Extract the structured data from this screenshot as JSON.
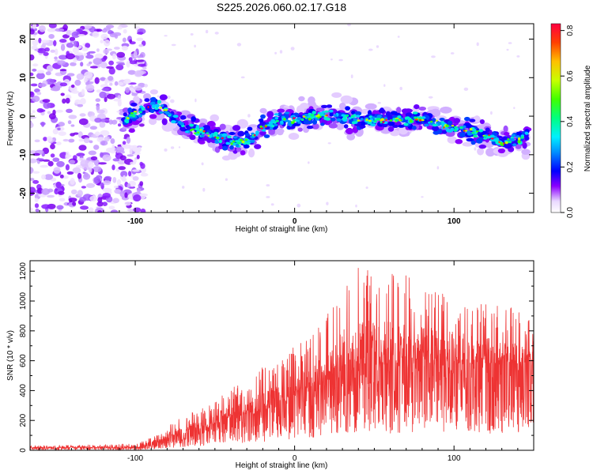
{
  "title": "S225.2026.060.02.17.G18",
  "chart_data": [
    {
      "type": "heatmap",
      "xlabel": "Height of straight line (km)",
      "ylabel": "Frequency (Hz)",
      "xlim": [
        -166,
        150
      ],
      "ylim": [
        -25,
        24
      ],
      "xticks": [
        -100,
        0,
        100
      ],
      "yticks": [
        -20,
        -10,
        0,
        10,
        20
      ],
      "colorbar": {
        "label": "Normalized spectral amplitude",
        "range": [
          0.0,
          0.83
        ],
        "ticks": [
          0.0,
          0.2,
          0.4,
          0.6,
          0.8
        ]
      },
      "noise_region_x": [
        -166,
        -94
      ],
      "signal_ridge": {
        "x": [
          -107,
          -98,
          -90,
          -82,
          -75,
          -68,
          -60,
          -50,
          -40,
          -30,
          -25,
          -20,
          -15,
          -10,
          0,
          10,
          20,
          30,
          40,
          50,
          60,
          70,
          80,
          90,
          100,
          110,
          120,
          130,
          140,
          146
        ],
        "freq": [
          -1,
          1,
          3,
          2,
          -1,
          -3,
          -4,
          -5,
          -7,
          -6,
          -5,
          -3,
          -2,
          -1,
          -1,
          0,
          0,
          0,
          -1,
          -1,
          -1,
          -1,
          -1,
          -2,
          -3,
          -4,
          -5,
          -7,
          -6,
          -5
        ]
      }
    },
    {
      "type": "line",
      "xlabel": "Height of straight line (km)",
      "ylabel": "SNR (10 * v/v)",
      "xlim": [
        -166,
        150
      ],
      "ylim": [
        0,
        1270
      ],
      "xticks": [
        -100,
        0,
        100
      ],
      "yticks": [
        0,
        200,
        400,
        600,
        800,
        1000,
        1200
      ],
      "color": "#ee3333",
      "envelope": {
        "x": [
          -166,
          -110,
          -95,
          -85,
          -75,
          -60,
          -50,
          -40,
          -30,
          -20,
          -10,
          0,
          10,
          20,
          30,
          40,
          60,
          80,
          100,
          120,
          140,
          150
        ],
        "mean": [
          18,
          18,
          22,
          60,
          100,
          140,
          170,
          220,
          240,
          260,
          300,
          360,
          400,
          450,
          500,
          550,
          560,
          580,
          560,
          560,
          560,
          600
        ],
        "max_peak": [
          30,
          40,
          60,
          110,
          200,
          280,
          330,
          420,
          450,
          560,
          600,
          700,
          750,
          900,
          1200,
          1260,
          1230,
          1150,
          1080,
          1000,
          950,
          900
        ]
      }
    }
  ]
}
